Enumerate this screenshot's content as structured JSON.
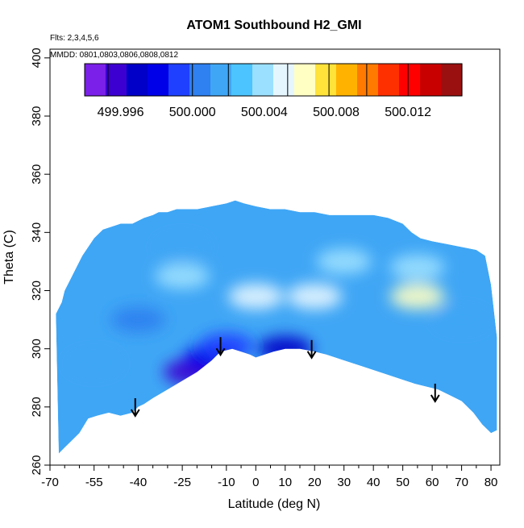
{
  "chart_data": {
    "type": "heatmap",
    "title": "ATOM1 Southbound H2_GMI",
    "annotations": [
      "Flts: 2,3,4,5,6",
      "MMDD: 0801,0803,0806,0808,0812"
    ],
    "xlabel": "Latitude (deg N)",
    "ylabel": "Theta (C)",
    "xlim": [
      -70,
      83
    ],
    "ylim": [
      260,
      403
    ],
    "x_ticks": [
      -70,
      -55,
      -40,
      -25,
      -10,
      0,
      10,
      20,
      30,
      40,
      50,
      60,
      70,
      80
    ],
    "x_minor_ticks": [
      -65,
      -60,
      -50,
      -45,
      -35,
      -30,
      -20,
      -15,
      -5,
      5,
      15,
      25,
      35,
      45,
      55,
      65,
      75
    ],
    "y_ticks": [
      260,
      280,
      300,
      320,
      340,
      360,
      380,
      400
    ],
    "colorbar": {
      "range": [
        499.994,
        500.015
      ],
      "tick_values": [
        499.996,
        500.0,
        500.004,
        500.008,
        500.012
      ],
      "tick_labels": [
        "499.996",
        "500.000",
        "500.004",
        "500.008",
        "500.012"
      ],
      "colors": [
        "#7a20e8",
        "#3c00d0",
        "#0000c8",
        "#0000e8",
        "#1f40ff",
        "#2f80f0",
        "#3fa6f5",
        "#4cc4ff",
        "#9be0ff",
        "#e6f6ff",
        "#ffffc4",
        "#ffe23a",
        "#ffb300",
        "#ff7a00",
        "#ff3000",
        "#ff0000",
        "#c80000",
        "#9a1010"
      ],
      "dividers": [
        499.9953,
        500.0,
        500.002,
        500.0053,
        500.0076,
        500.0097,
        500.012
      ]
    },
    "data_outline": {
      "upper": [
        [
          -68,
          312
        ],
        [
          -66,
          316
        ],
        [
          -65,
          320
        ],
        [
          -63,
          324
        ],
        [
          -61,
          328
        ],
        [
          -59,
          332
        ],
        [
          -57,
          335
        ],
        [
          -55,
          338
        ],
        [
          -52,
          341
        ],
        [
          -49,
          342
        ],
        [
          -46,
          343
        ],
        [
          -42,
          343
        ],
        [
          -40,
          344
        ],
        [
          -38,
          345
        ],
        [
          -35,
          346
        ],
        [
          -33,
          347
        ],
        [
          -30,
          347
        ],
        [
          -27,
          348
        ],
        [
          -24,
          348
        ],
        [
          -20,
          348
        ],
        [
          -15,
          349
        ],
        [
          -10,
          350
        ],
        [
          -7,
          351
        ],
        [
          -4,
          350
        ],
        [
          0,
          349
        ],
        [
          5,
          348
        ],
        [
          10,
          348
        ],
        [
          15,
          347
        ],
        [
          20,
          347
        ],
        [
          25,
          346
        ],
        [
          30,
          346
        ],
        [
          35,
          346
        ],
        [
          40,
          346
        ],
        [
          45,
          345
        ],
        [
          50,
          343
        ],
        [
          53,
          340
        ],
        [
          56,
          338
        ],
        [
          60,
          337
        ],
        [
          65,
          336
        ],
        [
          70,
          335
        ],
        [
          75,
          334
        ],
        [
          78,
          332
        ],
        [
          80,
          322
        ],
        [
          82,
          304
        ]
      ],
      "lower": [
        [
          82,
          272
        ],
        [
          80,
          271
        ],
        [
          77,
          274
        ],
        [
          74,
          278
        ],
        [
          70,
          282
        ],
        [
          66,
          284
        ],
        [
          62,
          286
        ],
        [
          58,
          287
        ],
        [
          54,
          288
        ],
        [
          48,
          290
        ],
        [
          42,
          292
        ],
        [
          36,
          294
        ],
        [
          30,
          296
        ],
        [
          24,
          298
        ],
        [
          20,
          299
        ],
        [
          15,
          300
        ],
        [
          10,
          300
        ],
        [
          6,
          299
        ],
        [
          3,
          298
        ],
        [
          0,
          297
        ],
        [
          -2,
          298
        ],
        [
          -5,
          299
        ],
        [
          -8,
          300
        ],
        [
          -12,
          299
        ],
        [
          -15,
          296
        ],
        [
          -20,
          292
        ],
        [
          -25,
          289
        ],
        [
          -30,
          286
        ],
        [
          -35,
          283
        ],
        [
          -38,
          281
        ],
        [
          -40,
          280
        ],
        [
          -42,
          278
        ],
        [
          -46,
          277
        ],
        [
          -50,
          278
        ],
        [
          -54,
          277
        ],
        [
          -57,
          276
        ],
        [
          -60,
          271
        ],
        [
          -63,
          268
        ],
        [
          -65,
          266
        ],
        [
          -67,
          264
        ]
      ]
    },
    "field": [
      {
        "lat": -55,
        "theta": 295,
        "value": 500.002
      },
      {
        "lat": -40,
        "theta": 310,
        "value": 500.001
      },
      {
        "lat": -25,
        "theta": 335,
        "value": 500.002
      },
      {
        "lat": -25,
        "theta": 325,
        "value": 500.004
      },
      {
        "lat": 0,
        "theta": 318,
        "value": 500.005
      },
      {
        "lat": 20,
        "theta": 318,
        "value": 500.005
      },
      {
        "lat": 30,
        "theta": 330,
        "value": 500.004
      },
      {
        "lat": 55,
        "theta": 318,
        "value": 500.006
      },
      {
        "lat": 55,
        "theta": 328,
        "value": 500.004
      },
      {
        "lat": -22,
        "theta": 292,
        "value": 499.996
      },
      {
        "lat": -15,
        "theta": 297,
        "value": 499.998
      },
      {
        "lat": 10,
        "theta": 300,
        "value": 499.997
      },
      {
        "lat": -10,
        "theta": 301,
        "value": 499.999
      },
      {
        "lat": 70,
        "theta": 310,
        "value": 500.002
      }
    ],
    "arrows": [
      {
        "lat": -41,
        "theta": 283
      },
      {
        "lat": -12,
        "theta": 304
      },
      {
        "lat": 19,
        "theta": 303
      },
      {
        "lat": 61,
        "theta": 288
      }
    ],
    "grid": false,
    "legend": "colorbar-top"
  }
}
